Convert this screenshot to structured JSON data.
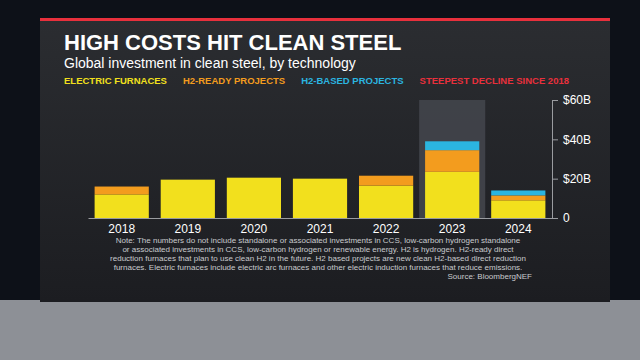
{
  "chart_data": {
    "type": "bar",
    "title": "HIGH COSTS HIT CLEAN STEEL",
    "subtitle": "Global investment in clean steel, by technology",
    "annotation": "STEEPEST DECLINE SINCE 2018",
    "categories": [
      "2018",
      "2019",
      "2020",
      "2021",
      "2022",
      "2023",
      "2024"
    ],
    "series": [
      {
        "name": "ELECTRIC FURNACES",
        "color": "#f2e01d",
        "values": [
          12,
          19.5,
          20.5,
          20,
          16.5,
          23.5,
          9
        ]
      },
      {
        "name": "H2-READY PROJECTS",
        "color": "#f39c1e",
        "values": [
          4,
          0,
          0,
          0,
          5,
          11,
          2.5
        ]
      },
      {
        "name": "H2-BASED PROJECTS",
        "color": "#2bb5e0",
        "values": [
          0,
          0,
          0,
          0,
          0,
          4.5,
          2.5
        ]
      }
    ],
    "stacked": true,
    "legend": "top",
    "grid": false,
    "ylim": [
      0,
      60
    ],
    "yticks": [
      0,
      {
        "value": 20,
        "label": "$20B"
      },
      {
        "value": 40,
        "label": "$40B"
      },
      {
        "value": 60,
        "label": "$60B"
      }
    ],
    "note": [
      "Note: The numbers do not include standalone or associated investments in CCS, low-carbon hydrogen standalone",
      "or associated investments in CCS, low-carbon hydrogen or renewable energy. H2 is hydrogen. H2-ready direct",
      "reduction furnaces that plan to use clean H2 in the future. H2 based projects are new clean H2-based direct reduction",
      "furnaces. Electric furnaces include electric arc furnaces and other electric induction furnaces that reduce emissions."
    ],
    "source": "Source: BloombergNEF"
  }
}
